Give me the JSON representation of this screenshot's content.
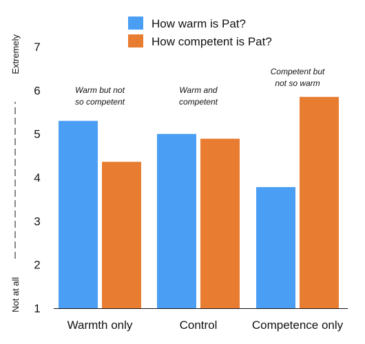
{
  "chart_data": {
    "type": "bar",
    "categories": [
      "Warmth only",
      "Control",
      "Competence only"
    ],
    "series": [
      {
        "name": "How warm is Pat?",
        "color": "#4a9ff5",
        "values": [
          5.3,
          5.0,
          3.78
        ]
      },
      {
        "name": "How competent is Pat?",
        "color": "#e87c30",
        "values": [
          4.36,
          4.89,
          5.85
        ]
      }
    ],
    "ylim": [
      1,
      7
    ],
    "yticks": [
      "1",
      "2",
      "3",
      "4",
      "5",
      "6",
      "7"
    ],
    "ylabel_low": "Not at all",
    "ylabel_high": "Extremely",
    "annotations": [
      {
        "category_index": 0,
        "lines": [
          "Warm but not",
          "so competent"
        ]
      },
      {
        "category_index": 1,
        "lines": [
          "Warm and",
          "competent"
        ]
      },
      {
        "category_index": 2,
        "lines": [
          "Competent but",
          "not so warm"
        ]
      }
    ],
    "legend_position": "top-right",
    "grid": false
  }
}
